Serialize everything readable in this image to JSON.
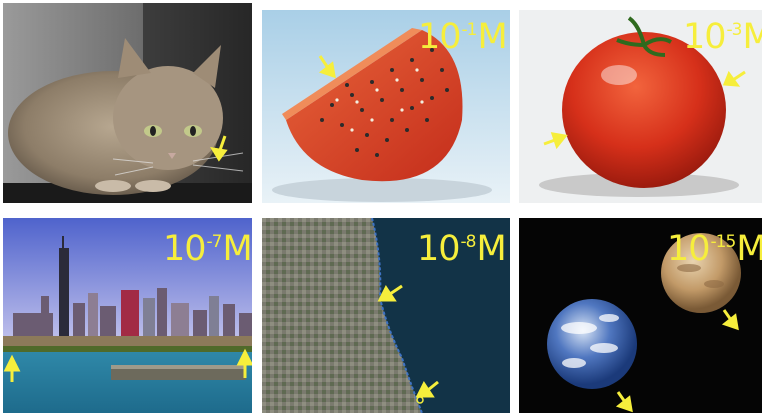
{
  "accent_color": "#f6ee3c",
  "panels": [
    {
      "name": "cat",
      "label": null
    },
    {
      "name": "tomato-slice",
      "label": {
        "base": "10",
        "exp": "-1",
        "unit": "M"
      }
    },
    {
      "name": "tomato",
      "label": {
        "base": "10",
        "exp": "-3",
        "unit": "M"
      }
    },
    {
      "name": "chicago-skyline",
      "label": {
        "base": "10",
        "exp": "-7",
        "unit": "M"
      }
    },
    {
      "name": "chicago-satellite",
      "label": {
        "base": "10",
        "exp": "-8",
        "unit": "M"
      }
    },
    {
      "name": "earth-and-mars",
      "label": {
        "base": "10",
        "exp": "-15",
        "unit": "M"
      }
    }
  ],
  "icons": [
    "arrow-icon"
  ]
}
